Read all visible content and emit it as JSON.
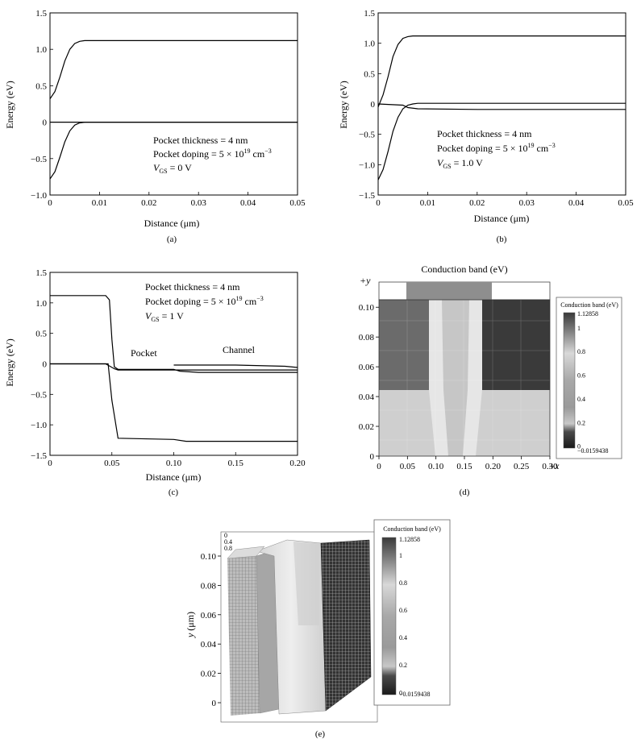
{
  "chart_data": [
    {
      "id": "a",
      "type": "line",
      "caption": "(a)",
      "xlabel": "Distance (μm)",
      "ylabel": "Energy (eV)",
      "xlim": [
        0,
        0.05
      ],
      "ylim": [
        -1.0,
        1.5
      ],
      "xticks": [
        "0",
        "0.01",
        "0.02",
        "0.03",
        "0.04",
        "0.05"
      ],
      "yticks": [
        "−1.0",
        "−0.5",
        "0",
        "0.5",
        "1.0",
        "1.5"
      ],
      "annotations": [
        "Pocket thickness = 4 nm",
        "Pocket doping = 5 × 10¹⁹ cm⁻³",
        "VGS = 0 V"
      ],
      "series": [
        {
          "x": [
            0,
            0.001,
            0.002,
            0.003,
            0.004,
            0.005,
            0.006,
            0.007,
            0.008,
            0.01,
            0.02,
            0.03,
            0.04,
            0.05
          ],
          "y": [
            0.32,
            0.42,
            0.62,
            0.84,
            1.0,
            1.08,
            1.11,
            1.12,
            1.12,
            1.12,
            1.12,
            1.12,
            1.12,
            1.12
          ]
        },
        {
          "x": [
            0,
            0.05
          ],
          "y": [
            0,
            0
          ]
        },
        {
          "x": [
            0,
            0.001,
            0.002,
            0.003,
            0.004,
            0.005,
            0.006,
            0.007,
            0.008,
            0.01,
            0.02,
            0.03,
            0.04,
            0.05
          ],
          "y": [
            -0.78,
            -0.68,
            -0.48,
            -0.27,
            -0.12,
            -0.04,
            -0.01,
            0.0,
            0.0,
            0.0,
            0.0,
            0.0,
            0.0,
            0.0
          ]
        }
      ]
    },
    {
      "id": "b",
      "type": "line",
      "caption": "(b)",
      "xlabel": "Distance (μm)",
      "ylabel": "Energy (eV)",
      "xlim": [
        0,
        0.05
      ],
      "ylim": [
        -1.5,
        1.5
      ],
      "xticks": [
        "0",
        "0.01",
        "0.02",
        "0.03",
        "0.04",
        "0.05"
      ],
      "yticks": [
        "−1.5",
        "−1.0",
        "−0.5",
        "0",
        "0.5",
        "1.0",
        "1.5"
      ],
      "annotations": [
        "Pocket thickness = 4 nm",
        "Pocket doping = 5 × 10¹⁹ cm⁻³",
        "VGS = 1.0 V"
      ],
      "series": [
        {
          "x": [
            0,
            0.001,
            0.002,
            0.003,
            0.004,
            0.005,
            0.006,
            0.007,
            0.008,
            0.01,
            0.02,
            0.03,
            0.04,
            0.05
          ],
          "y": [
            -0.05,
            0.15,
            0.45,
            0.78,
            0.98,
            1.08,
            1.11,
            1.12,
            1.12,
            1.12,
            1.12,
            1.12,
            1.12,
            1.12
          ]
        },
        {
          "x": [
            0,
            0.005,
            0.006,
            0.008,
            0.02,
            0.05
          ],
          "y": [
            0,
            -0.02,
            -0.06,
            -0.08,
            -0.09,
            -0.09
          ]
        },
        {
          "x": [
            0,
            0.001,
            0.002,
            0.003,
            0.004,
            0.005,
            0.006,
            0.007,
            0.008,
            0.01,
            0.02,
            0.03,
            0.04,
            0.05
          ],
          "y": [
            -1.25,
            -1.08,
            -0.78,
            -0.45,
            -0.22,
            -0.08,
            -0.02,
            0.0,
            0.01,
            0.01,
            0.01,
            0.01,
            0.01,
            0.01
          ]
        }
      ]
    },
    {
      "id": "c",
      "type": "line",
      "caption": "(c)",
      "xlabel": "Distance (μm)",
      "ylabel": "Energy (eV)",
      "xlim": [
        0,
        0.2
      ],
      "ylim": [
        -1.5,
        1.5
      ],
      "xticks": [
        "0",
        "0.05",
        "0.10",
        "0.15",
        "0.20"
      ],
      "yticks": [
        "−1.5",
        "−1.0",
        "−0.5",
        "0",
        "0.5",
        "1.0",
        "1.5"
      ],
      "annotations": [
        "Pocket thickness = 4 nm",
        "Pocket doping = 5 × 10¹⁹ cm⁻³",
        "VGS = 1 V",
        "Pocket",
        "Channel"
      ],
      "series": [
        {
          "x": [
            0,
            0.03,
            0.045,
            0.048,
            0.05,
            0.052,
            0.055,
            0.06,
            0.1,
            0.105,
            0.12,
            0.2
          ],
          "y": [
            1.12,
            1.12,
            1.12,
            1.05,
            0.4,
            -0.05,
            -0.09,
            -0.09,
            -0.09,
            -0.12,
            -0.14,
            -0.14
          ]
        },
        {
          "x": [
            0,
            0.045,
            0.052,
            0.055,
            0.1,
            0.15,
            0.19,
            0.2
          ],
          "y": [
            0,
            0,
            -0.08,
            -0.1,
            -0.1,
            -0.1,
            -0.1,
            -0.1
          ]
        },
        {
          "x": [
            0,
            0.047,
            0.05,
            0.055,
            0.1,
            0.11,
            0.19,
            0.2
          ],
          "y": [
            0,
            0,
            -0.6,
            -1.22,
            -1.24,
            -1.27,
            -1.27,
            -1.27
          ]
        },
        {
          "x": [
            0.1,
            0.15,
            0.19,
            0.2
          ],
          "y": [
            -0.02,
            -0.02,
            -0.04,
            -0.06
          ]
        }
      ]
    },
    {
      "id": "d",
      "type": "heatmap",
      "caption": "(d)",
      "title": "Conduction band (eV)",
      "xlim": [
        0,
        0.3
      ],
      "ylim": [
        0,
        0.105
      ],
      "xticks": [
        "0",
        "0.05",
        "0.10",
        "0.15",
        "0.20",
        "0.25",
        "0.30"
      ],
      "yticks": [
        "0",
        "0.02",
        "0.04",
        "0.06",
        "0.08",
        "0.10"
      ],
      "x_axis_label": "+x",
      "y_axis_label": "+y",
      "colorbar": {
        "title": "Conduction band (eV)",
        "max_label": "1.12858",
        "min_label": "−0.0159438",
        "ticks": [
          "1",
          "0.8",
          "0.6",
          "0.4",
          "0.2",
          "0"
        ]
      }
    },
    {
      "id": "e",
      "type": "heatmap",
      "caption": "(e)",
      "ylabel": "y (μm)",
      "yticks": [
        "0",
        "0.02",
        "0.04",
        "0.06",
        "0.08",
        "0.10"
      ],
      "depth_ticks": [
        "0",
        "0.4",
        "0.8"
      ],
      "colorbar": {
        "title": "Conduction band (eV)",
        "max_label": "1.12858",
        "min_label": "−0.0159438",
        "ticks": [
          "1",
          "0.8",
          "0.6",
          "0.4",
          "0.2",
          "0"
        ]
      }
    }
  ]
}
